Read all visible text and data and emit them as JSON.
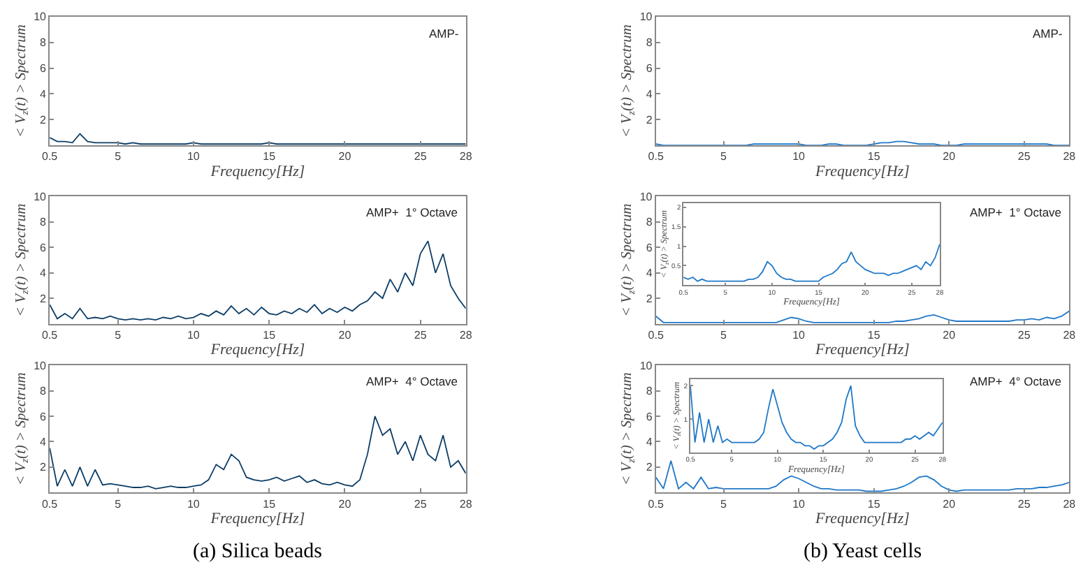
{
  "chart_data": [
    {
      "type": "line",
      "title": "AMP-",
      "xlabel": "Frequency[Hz]",
      "ylabel": "< V$_{z}$(t) > Spectrum",
      "xlim": [
        0.5,
        28
      ],
      "xticks": [
        0.5,
        5,
        10,
        15,
        20,
        25,
        28
      ],
      "ylim": [
        0,
        10
      ],
      "yticks": [
        2,
        4,
        6,
        8,
        10
      ],
      "series": [
        {
          "color": "#0b3d66",
          "values": [
            0.6,
            0.3,
            0.3,
            0.2,
            0.9,
            0.3,
            0.2,
            0.2,
            0.2,
            0.2,
            0.1,
            0.2,
            0.1,
            0.1,
            0.1,
            0.1,
            0.1,
            0.1,
            0.1,
            0.2,
            0.1,
            0.1,
            0.1,
            0.1,
            0.1,
            0.1,
            0.1,
            0.1,
            0.1,
            0.2,
            0.1,
            0.1,
            0.1,
            0.1,
            0.1,
            0.1,
            0.1,
            0.1,
            0.1,
            0.1,
            0.1,
            0.1,
            0.1,
            0.1,
            0.1,
            0.1,
            0.1,
            0.1,
            0.1,
            0.1,
            0.1,
            0.1,
            0.1,
            0.1,
            0.1,
            0.1
          ]
        }
      ],
      "x": [
        0.5,
        1,
        1.5,
        2,
        2.5,
        3,
        3.5,
        4,
        4.5,
        5,
        5.5,
        6,
        6.5,
        7,
        7.5,
        8,
        8.5,
        9,
        9.5,
        10,
        10.5,
        11,
        11.5,
        12,
        12.5,
        13,
        13.5,
        14,
        14.5,
        15,
        15.5,
        16,
        16.5,
        17,
        17.5,
        18,
        18.5,
        19,
        19.5,
        20,
        20.5,
        21,
        21.5,
        22,
        22.5,
        23,
        23.5,
        24,
        24.5,
        25,
        25.5,
        26,
        26.5,
        27,
        27.5,
        28
      ]
    },
    {
      "type": "line",
      "title": "AMP-",
      "xlabel": "Frequency[Hz]",
      "ylabel": "< V$_{z}$(t) > Spectrum",
      "xlim": [
        0.5,
        28
      ],
      "xticks": [
        0.5,
        5,
        10,
        15,
        20,
        25,
        28
      ],
      "ylim": [
        0,
        10
      ],
      "yticks": [
        2,
        4,
        6,
        8,
        10
      ],
      "series": [
        {
          "color": "#1f78c8",
          "values": [
            0.1,
            0,
            0,
            0,
            0,
            0,
            0,
            0,
            0,
            0,
            0,
            0,
            0,
            0.1,
            0.1,
            0.1,
            0.1,
            0.1,
            0.1,
            0.1,
            0,
            0,
            0,
            0.1,
            0.1,
            0,
            0,
            0,
            0,
            0.1,
            0.2,
            0.2,
            0.3,
            0.3,
            0.2,
            0.1,
            0.1,
            0.1,
            0,
            0,
            0,
            0.1,
            0.1,
            0.1,
            0.1,
            0.1,
            0.1,
            0.1,
            0.1,
            0.1,
            0.1,
            0.1,
            0.1,
            0,
            0,
            0
          ]
        }
      ],
      "x": [
        0.5,
        1,
        1.5,
        2,
        2.5,
        3,
        3.5,
        4,
        4.5,
        5,
        5.5,
        6,
        6.5,
        7,
        7.5,
        8,
        8.5,
        9,
        9.5,
        10,
        10.5,
        11,
        11.5,
        12,
        12.5,
        13,
        13.5,
        14,
        14.5,
        15,
        15.5,
        16,
        16.5,
        17,
        17.5,
        18,
        18.5,
        19,
        19.5,
        20,
        20.5,
        21,
        21.5,
        22,
        22.5,
        23,
        23.5,
        24,
        24.5,
        25,
        25.5,
        26,
        26.5,
        27,
        27.5,
        28
      ]
    },
    {
      "type": "line",
      "title": "AMP+  1° Octave",
      "xlabel": "Frequency[Hz]",
      "ylabel": "< V$_{z}$(t) > Spectrum",
      "xlim": [
        0.5,
        28
      ],
      "xticks": [
        0.5,
        5,
        10,
        15,
        20,
        25,
        28
      ],
      "ylim": [
        0,
        10
      ],
      "yticks": [
        2,
        4,
        6,
        8,
        10
      ],
      "series": [
        {
          "color": "#0b3d66",
          "values": [
            1.5,
            0.4,
            0.8,
            0.4,
            1.2,
            0.4,
            0.5,
            0.4,
            0.6,
            0.4,
            0.3,
            0.4,
            0.3,
            0.4,
            0.3,
            0.5,
            0.4,
            0.6,
            0.4,
            0.5,
            0.8,
            0.6,
            1.0,
            0.7,
            1.4,
            0.8,
            1.2,
            0.7,
            1.3,
            0.8,
            0.7,
            1.0,
            0.8,
            1.2,
            0.9,
            1.5,
            0.8,
            1.2,
            0.9,
            1.3,
            1.0,
            1.5,
            1.8,
            2.5,
            2.0,
            3.5,
            2.5,
            4.0,
            3.0,
            5.5,
            6.5,
            4.0,
            5.5,
            3.0,
            2.0,
            1.2
          ]
        }
      ],
      "x": [
        0.5,
        1,
        1.5,
        2,
        2.5,
        3,
        3.5,
        4,
        4.5,
        5,
        5.5,
        6,
        6.5,
        7,
        7.5,
        8,
        8.5,
        9,
        9.5,
        10,
        10.5,
        11,
        11.5,
        12,
        12.5,
        13,
        13.5,
        14,
        14.5,
        15,
        15.5,
        16,
        16.5,
        17,
        17.5,
        18,
        18.5,
        19,
        19.5,
        20,
        20.5,
        21,
        21.5,
        22,
        22.5,
        23,
        23.5,
        24,
        24.5,
        25,
        25.5,
        26,
        26.5,
        27,
        27.5,
        28
      ]
    },
    {
      "type": "line",
      "title": "AMP+  1° Octave",
      "xlabel": "Frequency[Hz]",
      "ylabel": "< V$_{z}$(t) > Spectrum",
      "xlim": [
        0.5,
        28
      ],
      "xticks": [
        0.5,
        5,
        10,
        15,
        20,
        25,
        28
      ],
      "ylim": [
        0,
        10
      ],
      "yticks": [
        2,
        4,
        6,
        8,
        10
      ],
      "series": [
        {
          "color": "#1f78c8",
          "values": [
            0.6,
            0.1,
            0.1,
            0.1,
            0.1,
            0.1,
            0.1,
            0.1,
            0.1,
            0.1,
            0.1,
            0.1,
            0.1,
            0.1,
            0.1,
            0.1,
            0.1,
            0.3,
            0.5,
            0.4,
            0.2,
            0.1,
            0.1,
            0.1,
            0.1,
            0.1,
            0.1,
            0.1,
            0.1,
            0.1,
            0.1,
            0.1,
            0.2,
            0.2,
            0.3,
            0.4,
            0.6,
            0.7,
            0.5,
            0.3,
            0.2,
            0.2,
            0.2,
            0.2,
            0.2,
            0.2,
            0.2,
            0.2,
            0.3,
            0.3,
            0.4,
            0.3,
            0.5,
            0.4,
            0.6,
            1.0
          ]
        }
      ],
      "x": [
        0.5,
        1,
        1.5,
        2,
        2.5,
        3,
        3.5,
        4,
        4.5,
        5,
        5.5,
        6,
        6.5,
        7,
        7.5,
        8,
        8.5,
        9,
        9.5,
        10,
        10.5,
        11,
        11.5,
        12,
        12.5,
        13,
        13.5,
        14,
        14.5,
        15,
        15.5,
        16,
        16.5,
        17,
        17.5,
        18,
        18.5,
        19,
        19.5,
        20,
        20.5,
        21,
        21.5,
        22,
        22.5,
        23,
        23.5,
        24,
        24.5,
        25,
        25.5,
        26,
        26.5,
        27,
        27.5,
        28
      ]
    },
    {
      "type": "line",
      "xlabel": "Frequency[Hz]",
      "ylabel": "< V$_{z}$(t) > Spectrum",
      "xlim": [
        0.5,
        28
      ],
      "xticks": [
        0.5,
        5,
        10,
        15,
        20,
        25,
        28
      ],
      "ylim": [
        0,
        2.1
      ],
      "yticks": [
        0.5,
        1,
        1.5,
        2
      ],
      "series": [
        {
          "color": "#1f78c8",
          "values": [
            0.2,
            0.15,
            0.2,
            0.1,
            0.15,
            0.1,
            0.1,
            0.1,
            0.1,
            0.1,
            0.1,
            0.1,
            0.1,
            0.1,
            0.15,
            0.15,
            0.2,
            0.35,
            0.6,
            0.5,
            0.3,
            0.2,
            0.15,
            0.15,
            0.1,
            0.1,
            0.1,
            0.1,
            0.1,
            0.1,
            0.2,
            0.25,
            0.3,
            0.4,
            0.55,
            0.6,
            0.85,
            0.6,
            0.5,
            0.4,
            0.35,
            0.3,
            0.3,
            0.3,
            0.25,
            0.3,
            0.3,
            0.35,
            0.4,
            0.45,
            0.5,
            0.4,
            0.6,
            0.5,
            0.7,
            1.05
          ]
        }
      ],
      "x": [
        0.5,
        1,
        1.5,
        2,
        2.5,
        3,
        3.5,
        4,
        4.5,
        5,
        5.5,
        6,
        6.5,
        7,
        7.5,
        8,
        8.5,
        9,
        9.5,
        10,
        10.5,
        11,
        11.5,
        12,
        12.5,
        13,
        13.5,
        14,
        14.5,
        15,
        15.5,
        16,
        16.5,
        17,
        17.5,
        18,
        18.5,
        19,
        19.5,
        20,
        20.5,
        21,
        21.5,
        22,
        22.5,
        23,
        23.5,
        24,
        24.5,
        25,
        25.5,
        26,
        26.5,
        27,
        27.5,
        28
      ]
    },
    {
      "type": "line",
      "title": "AMP+  4° Octave",
      "xlabel": "Frequency[Hz]",
      "ylabel": "< V$_{z}$(t) > Spectrum",
      "xlim": [
        0.5,
        28
      ],
      "xticks": [
        0.5,
        5,
        10,
        15,
        20,
        25,
        28
      ],
      "ylim": [
        0,
        10
      ],
      "yticks": [
        2,
        4,
        6,
        8,
        10
      ],
      "annotations": [
        "(a) Silica beads"
      ],
      "series": [
        {
          "color": "#0b3d66",
          "values": [
            3.5,
            0.5,
            1.8,
            0.5,
            2.0,
            0.5,
            1.8,
            0.6,
            0.7,
            0.6,
            0.5,
            0.4,
            0.4,
            0.5,
            0.3,
            0.4,
            0.5,
            0.4,
            0.4,
            0.5,
            0.6,
            1.0,
            2.2,
            1.8,
            3.0,
            2.5,
            1.2,
            1.0,
            0.9,
            1.0,
            1.2,
            0.9,
            1.1,
            1.3,
            0.8,
            1.0,
            0.7,
            0.6,
            0.8,
            0.6,
            0.5,
            1.0,
            3.0,
            6.0,
            4.5,
            5.0,
            3.0,
            4.0,
            2.5,
            4.5,
            3.0,
            2.5,
            4.5,
            2.0,
            2.5,
            1.5
          ]
        }
      ],
      "x": [
        0.5,
        1,
        1.5,
        2,
        2.5,
        3,
        3.5,
        4,
        4.5,
        5,
        5.5,
        6,
        6.5,
        7,
        7.5,
        8,
        8.5,
        9,
        9.5,
        10,
        10.5,
        11,
        11.5,
        12,
        12.5,
        13,
        13.5,
        14,
        14.5,
        15,
        15.5,
        16,
        16.5,
        17,
        17.5,
        18,
        18.5,
        19,
        19.5,
        20,
        20.5,
        21,
        21.5,
        22,
        22.5,
        23,
        23.5,
        24,
        24.5,
        25,
        25.5,
        26,
        26.5,
        27,
        27.5,
        28
      ]
    },
    {
      "type": "line",
      "title": "AMP+  4° Octave",
      "xlabel": "Frequency[Hz]",
      "ylabel": "< V$_{z}$(t) > Spectrum",
      "xlim": [
        0.5,
        28
      ],
      "xticks": [
        0.5,
        5,
        10,
        15,
        20,
        25,
        28
      ],
      "ylim": [
        0,
        10
      ],
      "yticks": [
        2,
        4,
        6,
        8,
        10
      ],
      "annotations": [
        "(b) Yeast cells"
      ],
      "series": [
        {
          "color": "#1f78c8",
          "values": [
            1.2,
            0.3,
            2.5,
            0.3,
            0.8,
            0.3,
            1.2,
            0.3,
            0.4,
            0.3,
            0.3,
            0.3,
            0.3,
            0.3,
            0.3,
            0.3,
            0.5,
            1.0,
            1.3,
            1.1,
            0.8,
            0.5,
            0.3,
            0.3,
            0.2,
            0.2,
            0.2,
            0.2,
            0.1,
            0.1,
            0.1,
            0.2,
            0.3,
            0.5,
            0.8,
            1.2,
            1.3,
            1.0,
            0.5,
            0.2,
            0.1,
            0.2,
            0.2,
            0.2,
            0.2,
            0.2,
            0.2,
            0.2,
            0.3,
            0.3,
            0.3,
            0.4,
            0.4,
            0.5,
            0.6,
            0.8
          ]
        }
      ],
      "x": [
        0.5,
        1,
        1.5,
        2,
        2.5,
        3,
        3.5,
        4,
        4.5,
        5,
        5.5,
        6,
        6.5,
        7,
        7.5,
        8,
        8.5,
        9,
        9.5,
        10,
        10.5,
        11,
        11.5,
        12,
        12.5,
        13,
        13.5,
        14,
        14.5,
        15,
        15.5,
        16,
        16.5,
        17,
        17.5,
        18,
        18.5,
        19,
        19.5,
        20,
        20.5,
        21,
        21.5,
        22,
        22.5,
        23,
        23.5,
        24,
        24.5,
        25,
        25.5,
        26,
        26.5,
        27,
        27.5,
        28
      ]
    },
    {
      "type": "line",
      "xlabel": "Frequency[Hz]",
      "ylabel": "< V$_{z}$(t) > Spectrum",
      "xlim": [
        0.5,
        28
      ],
      "xticks": [
        0.5,
        5,
        10,
        15,
        20,
        25,
        28
      ],
      "ylim": [
        0,
        2.2
      ],
      "yticks": [
        1,
        2
      ],
      "series": [
        {
          "color": "#1f78c8",
          "values": [
            2.0,
            0.3,
            1.2,
            0.3,
            1.0,
            0.3,
            0.8,
            0.3,
            0.4,
            0.3,
            0.3,
            0.3,
            0.3,
            0.3,
            0.3,
            0.4,
            0.6,
            1.3,
            1.9,
            1.4,
            0.9,
            0.6,
            0.4,
            0.3,
            0.3,
            0.2,
            0.2,
            0.1,
            0.2,
            0.2,
            0.3,
            0.4,
            0.6,
            0.9,
            1.6,
            2.0,
            0.8,
            0.5,
            0.3,
            0.3,
            0.3,
            0.3,
            0.3,
            0.3,
            0.3,
            0.3,
            0.3,
            0.4,
            0.4,
            0.5,
            0.4,
            0.5,
            0.6,
            0.5,
            0.7,
            0.9
          ]
        }
      ],
      "x": [
        0.5,
        1,
        1.5,
        2,
        2.5,
        3,
        3.5,
        4,
        4.5,
        5,
        5.5,
        6,
        6.5,
        7,
        7.5,
        8,
        8.5,
        9,
        9.5,
        10,
        10.5,
        11,
        11.5,
        12,
        12.5,
        13,
        13.5,
        14,
        14.5,
        15,
        15.5,
        16,
        16.5,
        17,
        17.5,
        18,
        18.5,
        19,
        19.5,
        20,
        20.5,
        21,
        21.5,
        22,
        22.5,
        23,
        23.5,
        24,
        24.5,
        25,
        25.5,
        26,
        26.5,
        27,
        27.5,
        28
      ]
    }
  ]
}
